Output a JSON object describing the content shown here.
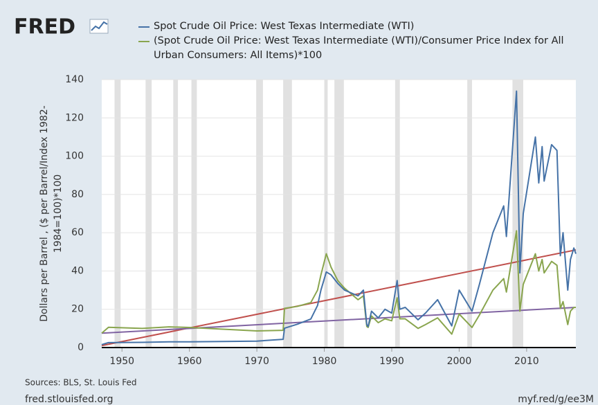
{
  "logo": "FRED",
  "chart_data": {
    "type": "line",
    "ylabel": [
      "Dollars per Barrel , ($ per Barrel/Index 1982-",
      "1984=100)*100"
    ],
    "x": [
      1947,
      1948,
      1953,
      1957,
      1960,
      1970,
      1973.9,
      1974.1,
      1976,
      1978,
      1979,
      1979.5,
      1980.3,
      1981,
      1982,
      1983,
      1985,
      1985.8,
      1986.3,
      1986.5,
      1987,
      1988,
      1989,
      1990,
      1990.8,
      1991.2,
      1992,
      1993.9,
      1995,
      1996.8,
      1998.9,
      2000,
      2001.9,
      2003,
      2005,
      2006.6,
      2007,
      2008.5,
      2009,
      2009.5,
      2011.3,
      2011.8,
      2012.3,
      2012.6,
      2013.7,
      2014.5,
      2015,
      2015.4,
      2016.1,
      2016.5,
      2017,
      2017.3
    ],
    "series": [
      {
        "name": "Spot Crude Oil Price: West Texas Intermediate (WTI)",
        "color": "#4572a7",
        "values": [
          1.5,
          2.6,
          2.7,
          3.0,
          3.0,
          3.35,
          4.3,
          10.1,
          12.2,
          14.9,
          22,
          30,
          39.5,
          38,
          33.5,
          30,
          27,
          30,
          12,
          11,
          19,
          15.5,
          20,
          18,
          35,
          20,
          21,
          14.5,
          18,
          25,
          11.3,
          30,
          19,
          33,
          60,
          74,
          58,
          134,
          39,
          70,
          110,
          86,
          105,
          87,
          106,
          103,
          48,
          60,
          30,
          46,
          52,
          49
        ]
      },
      {
        "name": "(Spot Crude Oil Price: West Texas Intermediate (WTI)/Consumer Price Index for All Urban Consumers: All Items)*100",
        "color": "#89a54e",
        "values": [
          7.5,
          10.6,
          10,
          10.8,
          10.5,
          8.7,
          9,
          20.5,
          21.5,
          23.5,
          30,
          38,
          49,
          42,
          35,
          31,
          25,
          27,
          11,
          10.5,
          16.5,
          13,
          15,
          14,
          26,
          15,
          15,
          10,
          12,
          15.5,
          7,
          17.5,
          10.5,
          17,
          30,
          36,
          29,
          61,
          19,
          33,
          49,
          40,
          46,
          39,
          45,
          43,
          20.5,
          24,
          12,
          19,
          21,
          21
        ]
      }
    ],
    "trend_lines": [
      {
        "color": "#c0504d",
        "x": [
          1947,
          2017.3
        ],
        "values": [
          1,
          51
        ]
      },
      {
        "color": "#8064a2",
        "x": [
          1947,
          2017.3
        ],
        "values": [
          7.5,
          21
        ]
      }
    ],
    "recessions": [
      [
        1948.9,
        1949.8
      ],
      [
        1953.5,
        1954.4
      ],
      [
        1957.6,
        1958.3
      ],
      [
        1960.3,
        1961.1
      ],
      [
        1969.9,
        1970.9
      ],
      [
        1973.9,
        1975.2
      ],
      [
        1980.0,
        1980.5
      ],
      [
        1981.5,
        1982.9
      ],
      [
        1990.5,
        1991.2
      ],
      [
        2001.2,
        2001.9
      ],
      [
        2007.9,
        2009.5
      ]
    ],
    "xlim": [
      1947,
      2017.3
    ],
    "ylim": [
      0,
      140
    ],
    "xticks": [
      1950,
      1960,
      1970,
      1980,
      1990,
      2000,
      2010
    ],
    "yticks": [
      0,
      20,
      40,
      60,
      80,
      100,
      120,
      140
    ],
    "grid": true
  },
  "footer": {
    "sources": "Sources: BLS, St. Louis Fed",
    "site": "fred.stlouisfed.org",
    "link": "myf.red/g/ee3M"
  }
}
